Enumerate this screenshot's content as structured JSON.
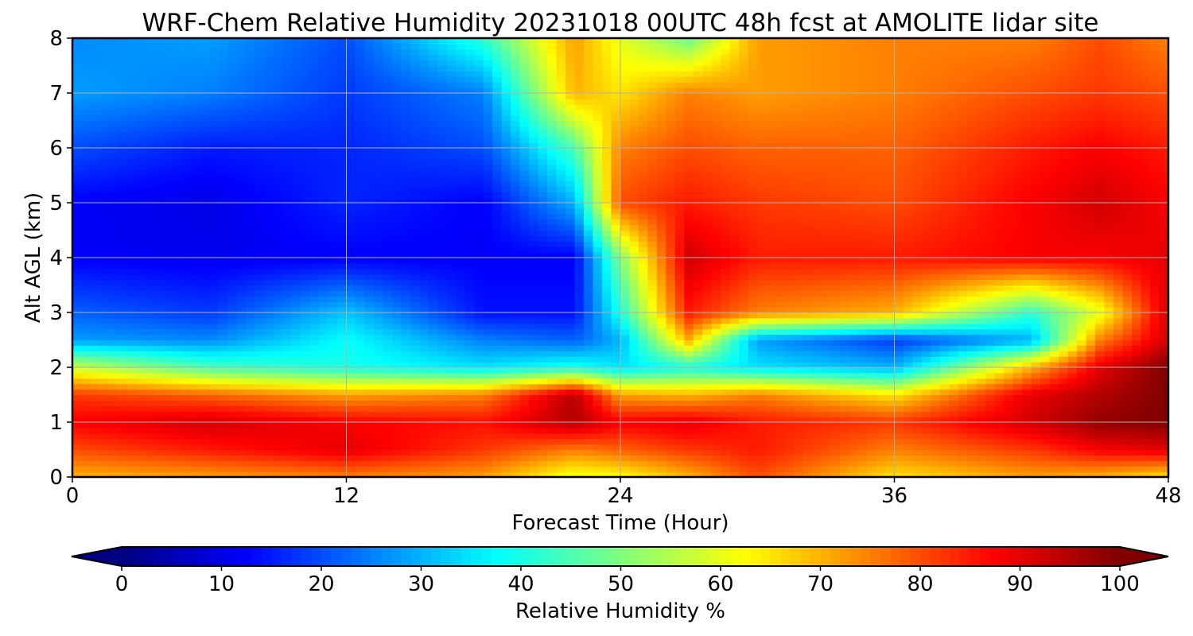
{
  "chart_data": {
    "type": "heatmap",
    "title": "WRF-Chem Relative Humidity 20231018 00UTC 48h fcst at AMOLITE lidar site",
    "xlabel": "Forecast Time (Hour)",
    "ylabel": "Alt AGL (km)",
    "xlim": [
      0,
      48
    ],
    "ylim": [
      0,
      8
    ],
    "xticks": [
      0,
      12,
      24,
      36,
      48
    ],
    "yticks": [
      0,
      1,
      2,
      3,
      4,
      5,
      6,
      7,
      8
    ],
    "grid": true,
    "colormap": "jet",
    "x": [
      0,
      6,
      12,
      18,
      22,
      24,
      27,
      30,
      36,
      42,
      45,
      48
    ],
    "y": [
      0,
      0.5,
      1,
      1.5,
      2,
      2.5,
      3,
      4,
      5,
      6,
      7,
      8
    ],
    "z": [
      [
        70,
        72,
        75,
        72,
        60,
        62,
        70,
        80,
        65,
        72,
        70,
        65
      ],
      [
        80,
        85,
        90,
        82,
        75,
        78,
        82,
        85,
        75,
        82,
        88,
        90
      ],
      [
        88,
        92,
        88,
        86,
        95,
        88,
        90,
        85,
        82,
        92,
        98,
        100
      ],
      [
        82,
        78,
        72,
        75,
        95,
        72,
        70,
        75,
        65,
        90,
        95,
        100
      ],
      [
        58,
        45,
        40,
        35,
        40,
        35,
        40,
        35,
        30,
        70,
        90,
        100
      ],
      [
        28,
        26,
        38,
        25,
        22,
        30,
        70,
        28,
        18,
        30,
        75,
        92
      ],
      [
        22,
        18,
        32,
        14,
        14,
        40,
        85,
        75,
        70,
        42,
        60,
        92
      ],
      [
        12,
        11,
        12,
        12,
        12,
        50,
        92,
        85,
        85,
        88,
        88,
        90
      ],
      [
        12,
        10,
        16,
        12,
        30,
        80,
        85,
        82,
        80,
        88,
        92,
        88
      ],
      [
        20,
        15,
        16,
        20,
        45,
        75,
        80,
        78,
        78,
        85,
        88,
        85
      ],
      [
        28,
        25,
        18,
        25,
        70,
        65,
        75,
        72,
        75,
        80,
        82,
        80
      ],
      [
        26,
        28,
        20,
        42,
        72,
        60,
        48,
        72,
        75,
        75,
        80,
        75
      ]
    ],
    "colorbar": {
      "label": "Relative Humidity %",
      "min": 0,
      "max": 100,
      "ticks": [
        0,
        10,
        20,
        30,
        40,
        50,
        60,
        70,
        80,
        90,
        100
      ],
      "extend": "both"
    }
  }
}
